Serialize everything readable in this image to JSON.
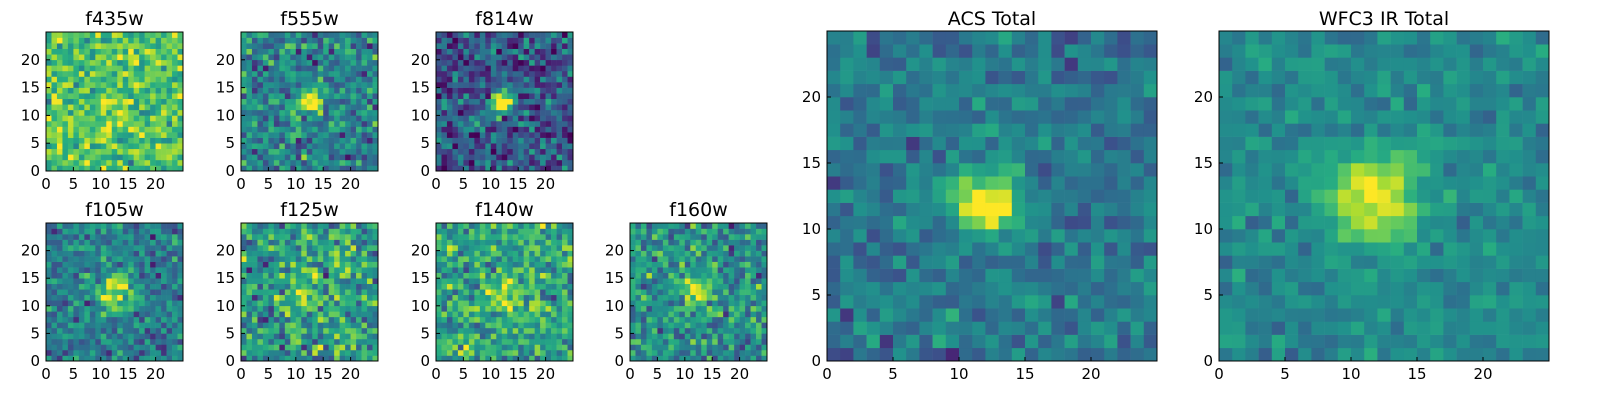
{
  "chart_data": {
    "type": "heatmap",
    "description_of_values": "Each panel is a 25x25 cutout image; cell values shown as normalized intensity 0-1 on a viridis colormap, estimated from the pixels.",
    "colormap": "viridis",
    "grid_size": [
      25,
      25
    ],
    "panels": [
      {
        "id": "f435w",
        "title": "f435w",
        "xlim": [
          0,
          25
        ],
        "ylim": [
          0,
          25
        ],
        "xticks": [
          0,
          5,
          10,
          15,
          20
        ],
        "yticks": [
          0,
          5,
          10,
          15,
          20
        ],
        "background": 0.72,
        "noise": 0.28,
        "source": {
          "x": 12.5,
          "y": 12.0,
          "amplitude": 0.12,
          "sigma": 2.0
        },
        "seed": 11
      },
      {
        "id": "f555w",
        "title": "f555w",
        "xlim": [
          0,
          25
        ],
        "ylim": [
          0,
          25
        ],
        "xticks": [
          0,
          5,
          10,
          15,
          20
        ],
        "yticks": [
          0,
          5,
          10,
          15,
          20
        ],
        "background": 0.45,
        "noise": 0.3,
        "source": {
          "x": 12.5,
          "y": 12.5,
          "amplitude": 0.6,
          "sigma": 1.5
        },
        "seed": 23
      },
      {
        "id": "f814w",
        "title": "f814w",
        "xlim": [
          0,
          25
        ],
        "ylim": [
          0,
          25
        ],
        "xticks": [
          0,
          5,
          10,
          15,
          20
        ],
        "yticks": [
          0,
          5,
          10,
          15,
          20
        ],
        "background": 0.28,
        "noise": 0.3,
        "source": {
          "x": 12.0,
          "y": 12.5,
          "amplitude": 0.75,
          "sigma": 1.5
        },
        "seed": 37
      },
      {
        "id": "f105w",
        "title": "f105w",
        "xlim": [
          0,
          25
        ],
        "ylim": [
          0,
          25
        ],
        "xticks": [
          0,
          5,
          10,
          15,
          20
        ],
        "yticks": [
          0,
          5,
          10,
          15,
          20
        ],
        "background": 0.42,
        "noise": 0.25,
        "source": {
          "x": 12.5,
          "y": 12.5,
          "amplitude": 0.55,
          "sigma": 2.2
        },
        "seed": 41
      },
      {
        "id": "f125w",
        "title": "f125w",
        "xlim": [
          0,
          25
        ],
        "ylim": [
          0,
          25
        ],
        "xticks": [
          0,
          5,
          10,
          15,
          20
        ],
        "yticks": [
          0,
          5,
          10,
          15,
          20
        ],
        "background": 0.55,
        "noise": 0.35,
        "source": {
          "x": 12.0,
          "y": 12.5,
          "amplitude": 0.3,
          "sigma": 2.2
        },
        "seed": 53
      },
      {
        "id": "f140w",
        "title": "f140w",
        "xlim": [
          0,
          25
        ],
        "ylim": [
          0,
          25
        ],
        "xticks": [
          0,
          5,
          10,
          15,
          20
        ],
        "yticks": [
          0,
          5,
          10,
          15,
          20
        ],
        "background": 0.6,
        "noise": 0.3,
        "source": {
          "x": 12.5,
          "y": 12.5,
          "amplitude": 0.35,
          "sigma": 2.0
        },
        "seed": 67
      },
      {
        "id": "f160w",
        "title": "f160w",
        "xlim": [
          0,
          25
        ],
        "ylim": [
          0,
          25
        ],
        "xticks": [
          0,
          5,
          10,
          15,
          20
        ],
        "yticks": [
          0,
          5,
          10,
          15,
          20
        ],
        "background": 0.5,
        "noise": 0.3,
        "source": {
          "x": 12.0,
          "y": 12.5,
          "amplitude": 0.45,
          "sigma": 1.8
        },
        "seed": 79
      },
      {
        "id": "acs-total",
        "title": "ACS Total",
        "xlim": [
          0,
          25
        ],
        "ylim": [
          0,
          25
        ],
        "xticks": [
          0,
          5,
          10,
          15,
          20
        ],
        "yticks": [
          0,
          5,
          10,
          15,
          20
        ],
        "background": 0.4,
        "noise": 0.18,
        "source": {
          "x": 12.0,
          "y": 12.0,
          "amplitude": 0.75,
          "sigma": 1.6
        },
        "seed": 97
      },
      {
        "id": "wfc3-ir-total",
        "title": "WFC3 IR Total",
        "xlim": [
          0,
          25
        ],
        "ylim": [
          0,
          25
        ],
        "xticks": [
          0,
          5,
          10,
          15,
          20
        ],
        "yticks": [
          0,
          5,
          10,
          15,
          20
        ],
        "background": 0.47,
        "noise": 0.14,
        "source": {
          "x": 12.0,
          "y": 12.5,
          "amplitude": 0.55,
          "sigma": 2.4
        },
        "seed": 113
      }
    ]
  }
}
